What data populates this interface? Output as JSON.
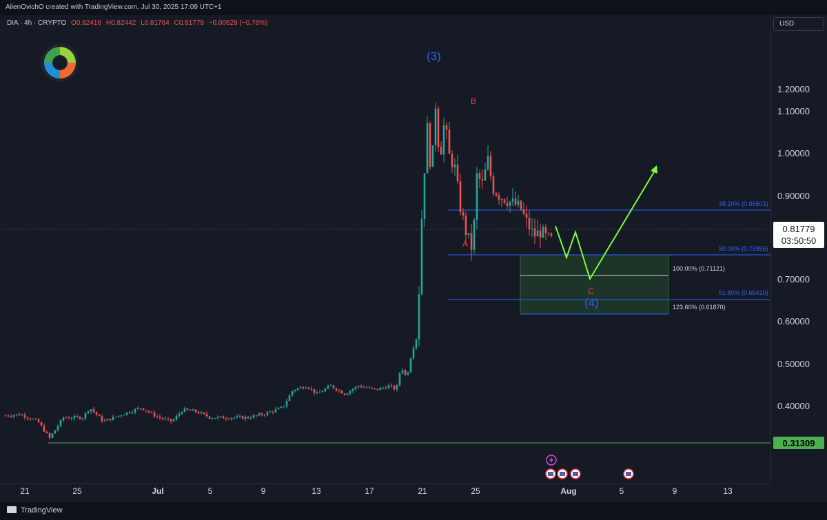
{
  "credit": "AlienOvichO created with TradingView.com, Jul 30, 2025 17:09 UTC+1",
  "legend": {
    "symbol": "DIA · 4h · CRYPTO",
    "open": "O0.82416",
    "high": "H0.82442",
    "low": "L0.81764",
    "close": "C0.81779",
    "change": "−0.00629 (−0.76%)"
  },
  "currency": "USD",
  "price_axis": {
    "ticks": [
      "1.20000",
      "1.10000",
      "1.00000",
      "0.90000",
      "0.80000",
      "0.70000",
      "0.60000",
      "0.50000",
      "0.40000"
    ],
    "last_price": "0.81779",
    "countdown": "03:50:50",
    "support_price": "0.31309"
  },
  "time_axis": {
    "labels": [
      "21",
      "25",
      "Jul",
      "5",
      "9",
      "13",
      "17",
      "21",
      "25",
      "Aug",
      "5",
      "9",
      "13"
    ]
  },
  "fib_levels": [
    {
      "label": "38.20% (0.86503)",
      "value": 0.86503,
      "ratio": "38.20%"
    },
    {
      "label": "50.00% (0.75956)",
      "value": 0.75956,
      "ratio": "50.00%"
    },
    {
      "label": "100.00% (0.71121)",
      "value": 0.71121,
      "ratio": "100.00%"
    },
    {
      "label": "61.80% (0.65410)",
      "value": 0.6541,
      "ratio": "61.80%"
    },
    {
      "label": "123.60% (0.61870)",
      "value": 0.6187,
      "ratio": "123.60%"
    }
  ],
  "wave_labels": {
    "wave3": "(3)",
    "wave4": "(4)",
    "a": "A",
    "b": "B",
    "c": "C"
  },
  "colors": {
    "background": "#161a25",
    "up_candle": "#26a69a",
    "down_candle": "#ef5350",
    "wave_blue": "#2962ff",
    "wave_red": "#f23645",
    "projection": "#7cfc3c",
    "fib_line": "#2962ff",
    "support_line": "#4caf50",
    "target_zone": "#1e3a2a"
  },
  "icons": [
    "logo-icon",
    "flash-event-icon",
    "us-flag-event-icon",
    "tradingview-logo-icon"
  ],
  "footer": {
    "brand": "TradingView"
  }
}
